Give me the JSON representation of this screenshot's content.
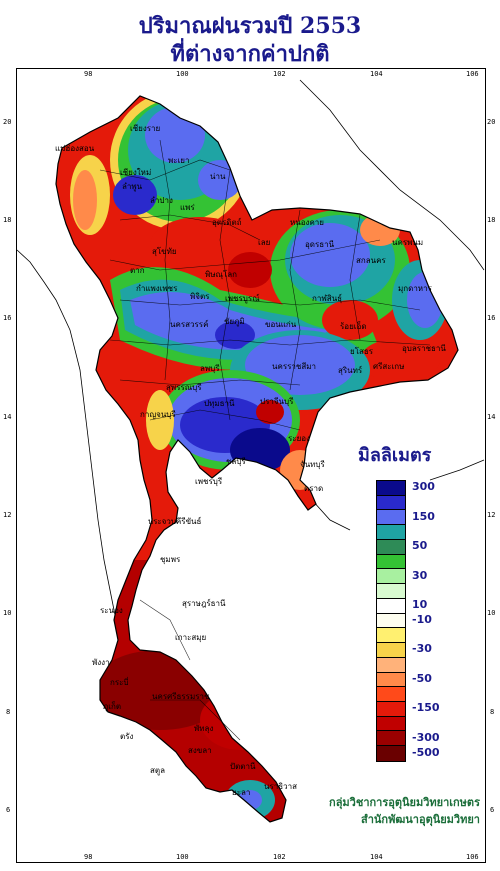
{
  "title_line1": "ปริมาณฝนรวมปี  2553",
  "title_line2": "ที่ต่างจากค่าปกติ",
  "lon_ticks": [
    "98",
    "100",
    "102",
    "104",
    "106"
  ],
  "lat_ticks": [
    "20",
    "18",
    "16",
    "14",
    "12",
    "10",
    "8",
    "6"
  ],
  "legend": {
    "title": "มิลลิเมตร",
    "classes": [
      {
        "label": "300",
        "color": "#0a0a8c"
      },
      {
        "label": "",
        "color": "#2a2acc"
      },
      {
        "label": "150",
        "color": "#5a6cf0"
      },
      {
        "label": "",
        "color": "#1fa4a4"
      },
      {
        "label": "50",
        "color": "#2e8b57"
      },
      {
        "label": "",
        "color": "#34c234"
      },
      {
        "label": "30",
        "color": "#a8f0a0"
      },
      {
        "label": "",
        "color": "#d8fad0"
      },
      {
        "label": "10",
        "color": "#ffffff"
      },
      {
        "label": "-10",
        "color": "#fefef0"
      },
      {
        "label": "",
        "color": "#fff070"
      },
      {
        "label": "-30",
        "color": "#f7d34a"
      },
      {
        "label": "",
        "color": "#ffb27a"
      },
      {
        "label": "-50",
        "color": "#ff8a4a"
      },
      {
        "label": "",
        "color": "#ff4a1a"
      },
      {
        "label": "-150",
        "color": "#e41a0a"
      },
      {
        "label": "",
        "color": "#c00000"
      },
      {
        "label": "-300",
        "color": "#9a0000"
      },
      {
        "label": "-500",
        "color": "#6a0000"
      }
    ]
  },
  "place_labels": [
    "เชียงราย",
    "แม่ฮ่องสอน",
    "เชียงใหม่",
    "ลำพูน",
    "พะเยา",
    "น่าน",
    "ลำปาง",
    "แพร่",
    "อุตรดิตถ์",
    "หนองคาย",
    "อุดรธานี",
    "เลย",
    "นครพนม",
    "สกลนคร",
    "มุกดาหาร",
    "ตาก",
    "สุโขทัย",
    "พิษณุโลก",
    "กำแพงเพชร",
    "พิจิตร",
    "เพชรบูรณ์",
    "ขอนแก่น",
    "กาฬสินธุ์",
    "นครสวรรค์",
    "ชัยภูมิ",
    "ร้อยเอ็ด",
    "อุบลราชธานี",
    "ลพบุรี",
    "นครราชสีมา",
    "สุรินทร์",
    "ยโสธร",
    "ศรีสะเกษ",
    "สุพรรณบุรี",
    "กาญจนบุรี",
    "ปทุมธานี",
    "ปราจีนบุรี",
    "ชลบุรี",
    "ระยอง",
    "จันทบุรี",
    "ตราด",
    "เพชรบุรี",
    "ประจวบคีรีขันธ์",
    "ชุมพร",
    "ระนอง",
    "สุราษฎร์ธานี",
    "เกาะสมุย",
    "พังงา",
    "กระบี่",
    "ภูเก็ต",
    "นครศรีธรรมราช",
    "ตรัง",
    "พัทลุง",
    "สงขลา",
    "สตูล",
    "ปัตตานี",
    "ยะลา",
    "นราธิวาส"
  ],
  "credit_line1": "กลุ่มวิชาการอุตุนิยมวิทยาเกษตร",
  "credit_line2": "สำนักพัฒนาอุตุนิยมวิทยา"
}
